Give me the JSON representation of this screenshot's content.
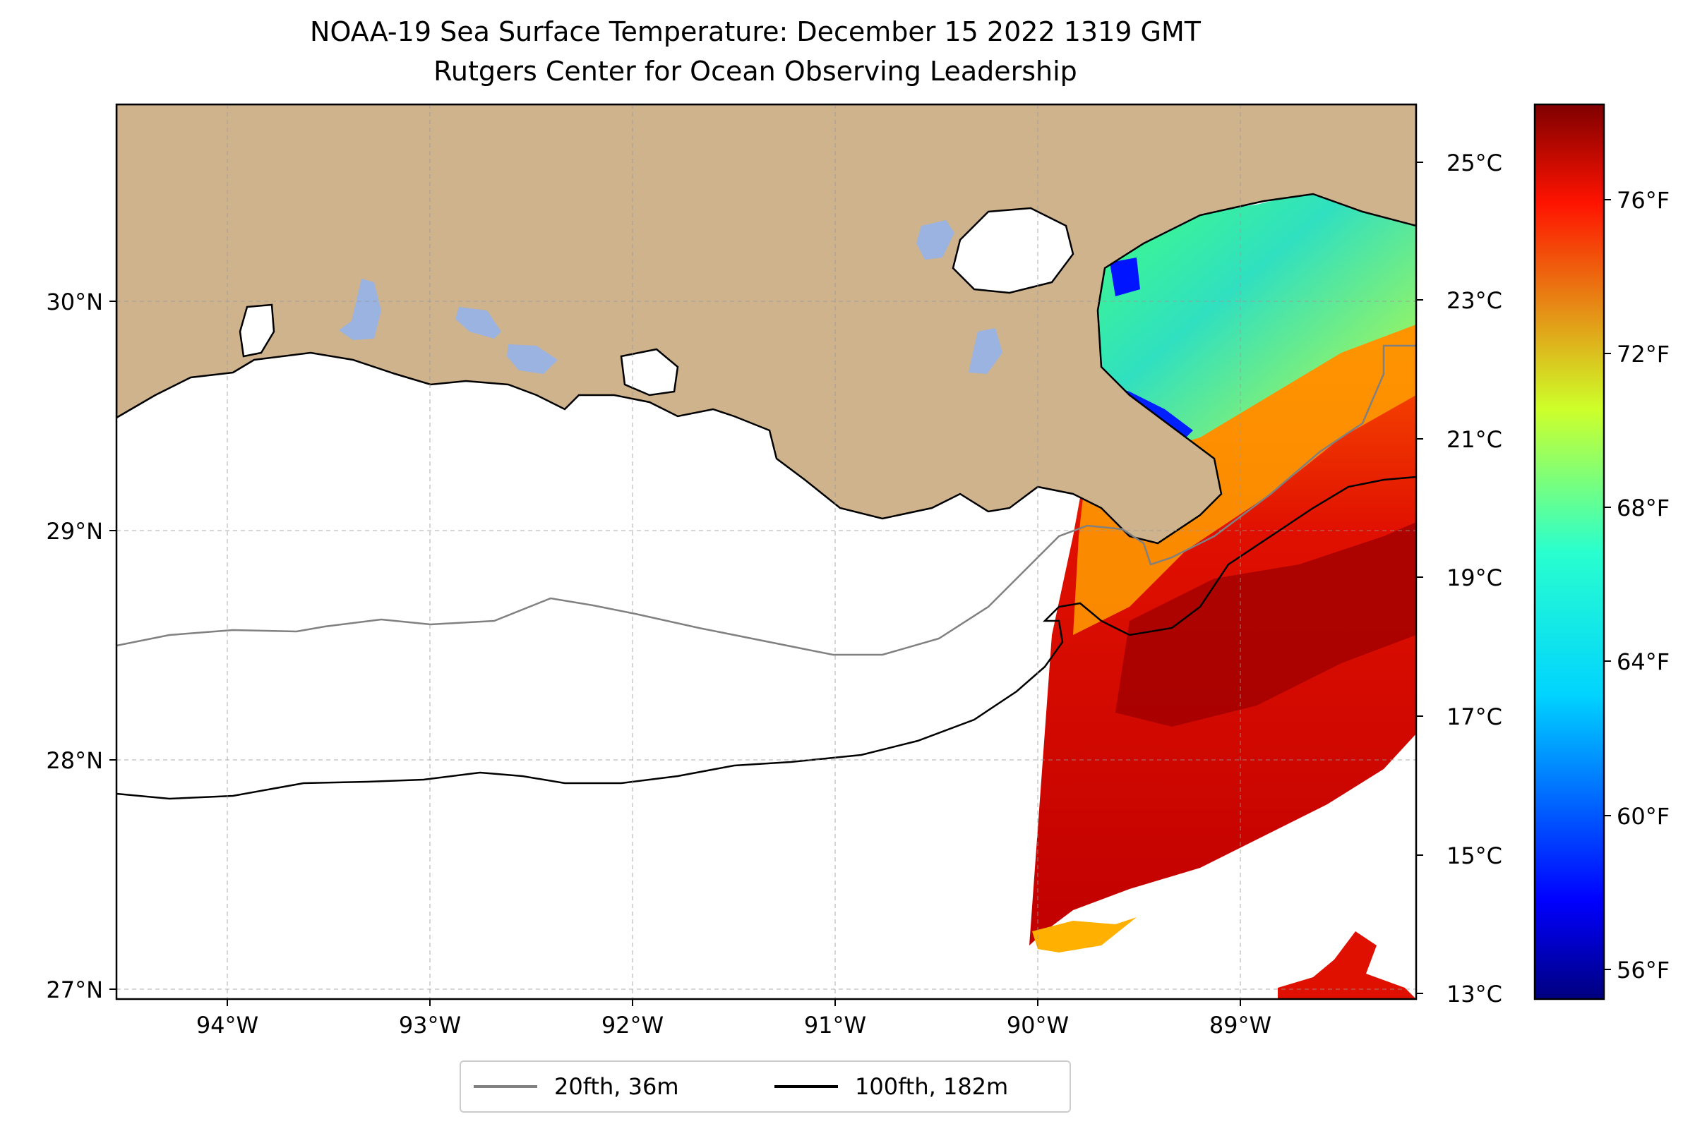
{
  "title": "NOAA-19 Sea Surface Temperature: December 15 2022 1319 GMT",
  "subtitle": "Rutgers Center for Ocean Observing Leadership",
  "map": {
    "lon_range": [
      -94.55,
      -88.1
    ],
    "lat_range": [
      26.93,
      30.83
    ],
    "lon_ticks": [
      "94°W",
      "93°W",
      "92°W",
      "91°W",
      "90°W",
      "89°W"
    ],
    "lat_ticks": [
      "30°N",
      "29°N",
      "28°N",
      "27°N"
    ],
    "grid": true,
    "colors": {
      "land": "#cfb38d",
      "lakes": "#9ab3e0",
      "ocean": "#ffffff",
      "coastline": "#000000",
      "isobath_20": "#808080",
      "isobath_100": "#000000"
    }
  },
  "colorbar": {
    "colormap": "jet",
    "celsius_range": [
      12.9,
      26.4
    ],
    "celsius_ticks": [
      "25°C",
      "23°C",
      "21°C",
      "19°C",
      "17°C",
      "15°C",
      "13°C"
    ],
    "fahrenheit_ticks": [
      "76°F",
      "72°F",
      "68°F",
      "64°F",
      "60°F",
      "56°F"
    ]
  },
  "legend": {
    "placement": "bottom-center",
    "items": [
      {
        "label": "20fth, 36m",
        "color": "#808080"
      },
      {
        "label": "100fth, 182m",
        "color": "#000000"
      }
    ]
  }
}
